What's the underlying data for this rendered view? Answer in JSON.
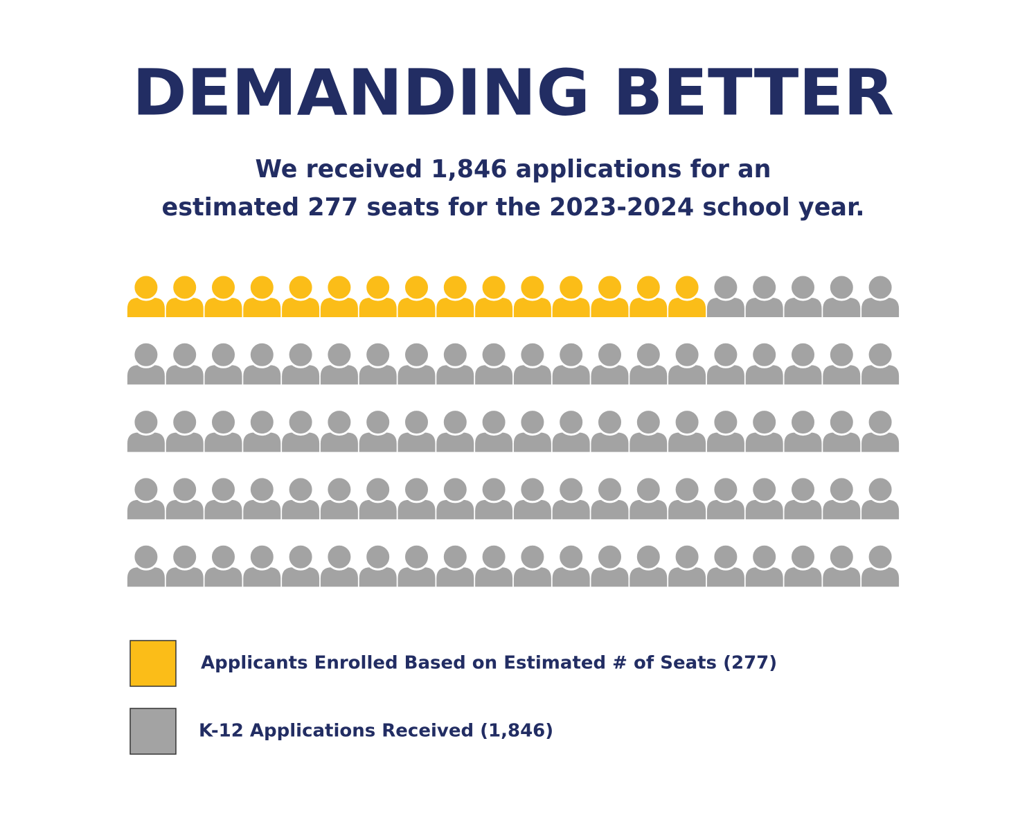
{
  "chart_data": {
    "type": "pictogram",
    "title": "DEMANDING BETTER",
    "subtitle": [
      "We received 1,846 applications for an",
      "estimated 277 seats for the 2023-2024 school year."
    ],
    "series": [
      {
        "name": "Applicants Enrolled Based on Estimated # of Seats (277)",
        "color": "#fbbd18",
        "icons": 15
      },
      {
        "name": "K-12 Applications Received (1,846)",
        "color": "#a3a3a3",
        "icons": 85
      }
    ]
  }
}
